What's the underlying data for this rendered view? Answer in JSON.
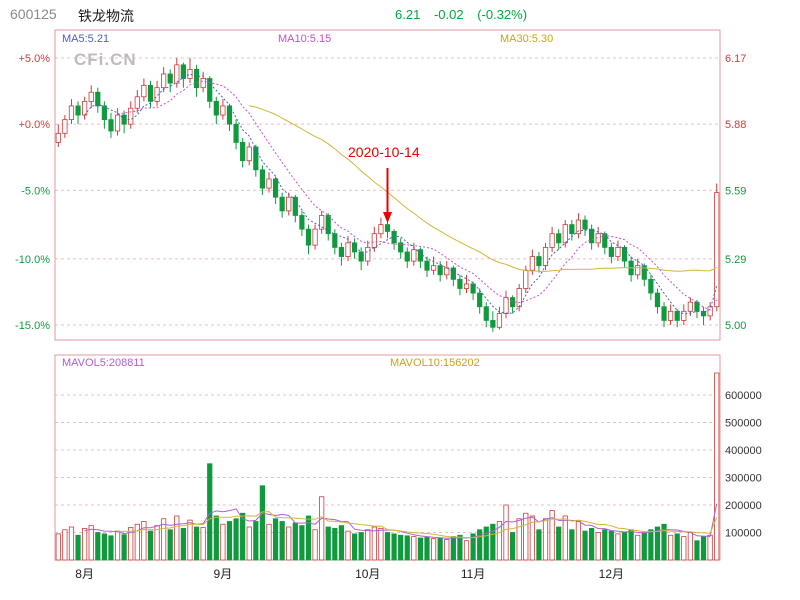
{
  "header": {
    "code": "600125",
    "name": "铁龙物流",
    "price": "6.21",
    "change": "-0.02",
    "change_pct": "(-0.32%)",
    "quote_color": "#00a83c"
  },
  "watermark": "CFi.CN",
  "annotation": {
    "text": "2020-10-14",
    "index": 50,
    "color": "#e60000"
  },
  "main_chart": {
    "ma_labels": [
      {
        "text": "MA5:5.21",
        "color": "#4d5fc0"
      },
      {
        "text": "MA10:5.15",
        "color": "#c94fc9"
      },
      {
        "text": "MA30:5.30",
        "color": "#c8a21d"
      }
    ],
    "left_axis": [
      {
        "text": "+5.0%",
        "color": "#d43c3c"
      },
      {
        "text": "+0.0%",
        "color": "#d43c3c"
      },
      {
        "text": "-5.0%",
        "color": "#109a3e"
      },
      {
        "text": "-10.0%",
        "color": "#109a3e"
      },
      {
        "text": "-15.0%",
        "color": "#109a3e"
      }
    ],
    "right_axis": [
      {
        "text": "6.17",
        "color": "#d43c3c",
        "price": 6.17
      },
      {
        "text": "5.88",
        "color": "#d43c3c",
        "price": 5.88
      },
      {
        "text": "5.59",
        "color": "#109a3e",
        "price": 5.59
      },
      {
        "text": "5.29",
        "color": "#109a3e",
        "price": 5.29
      },
      {
        "text": "5.00",
        "color": "#109a3e",
        "price": 5.0
      }
    ]
  },
  "volume_chart": {
    "mavol_labels": [
      {
        "text": "MAVOL5:208811",
        "color": "#b05fd0"
      },
      {
        "text": "MAVOL10:156202",
        "color": "#c8a21d"
      }
    ]
  },
  "x_axis": {
    "months": [
      {
        "label": "8月",
        "index": 4
      },
      {
        "label": "9月",
        "index": 25
      },
      {
        "label": "10月",
        "index": 47
      },
      {
        "label": "11月",
        "index": 63
      },
      {
        "label": "12月",
        "index": 84
      }
    ]
  },
  "chart_data": {
    "type": "candlestick",
    "title": "600125 铁龙物流 daily K-line with volume",
    "ylim": [
      5.0,
      6.17
    ],
    "percent_ylim": [
      "-15.0%",
      "+5.0%"
    ],
    "base_price": 5.88,
    "volume_ticks": [
      600000,
      500000,
      400000,
      300000,
      200000,
      100000
    ],
    "columns": [
      "open",
      "high",
      "low",
      "close",
      "volume"
    ],
    "colors": {
      "up": "#cf3b3b",
      "down": "#109a3e",
      "grid": "#f2bcbc",
      "border": "#e09a9a",
      "ma5": "#4d5fc0",
      "ma10": "#c94fc9",
      "ma30": "#d2b53a",
      "mavol5": "#b05fd0",
      "mavol10": "#d2b53a",
      "volume_tick_color": "#333333",
      "month_label_color": "#222222"
    },
    "candles": [
      [
        5.8,
        5.88,
        5.78,
        5.84,
        95000
      ],
      [
        5.84,
        5.92,
        5.82,
        5.9,
        110000
      ],
      [
        5.9,
        5.99,
        5.88,
        5.96,
        120000
      ],
      [
        5.96,
        5.98,
        5.88,
        5.92,
        90000
      ],
      [
        5.92,
        6.0,
        5.9,
        5.98,
        115000
      ],
      [
        5.98,
        6.05,
        5.95,
        6.02,
        125000
      ],
      [
        6.02,
        6.04,
        5.93,
        5.96,
        100000
      ],
      [
        5.96,
        5.98,
        5.86,
        5.9,
        95000
      ],
      [
        5.9,
        5.93,
        5.82,
        5.85,
        88000
      ],
      [
        5.85,
        5.95,
        5.83,
        5.92,
        105000
      ],
      [
        5.92,
        5.94,
        5.84,
        5.88,
        92000
      ],
      [
        5.88,
        5.98,
        5.86,
        5.95,
        118000
      ],
      [
        5.95,
        6.03,
        5.93,
        6.0,
        130000
      ],
      [
        6.0,
        6.08,
        5.98,
        6.05,
        140000
      ],
      [
        6.05,
        6.07,
        5.95,
        5.98,
        105000
      ],
      [
        5.98,
        6.07,
        5.96,
        6.04,
        125000
      ],
      [
        6.04,
        6.13,
        6.02,
        6.1,
        150000
      ],
      [
        6.1,
        6.12,
        6.02,
        6.06,
        110000
      ],
      [
        6.06,
        6.17,
        6.04,
        6.14,
        160000
      ],
      [
        6.14,
        6.15,
        6.04,
        6.08,
        115000
      ],
      [
        6.08,
        6.17,
        6.06,
        6.12,
        145000
      ],
      [
        6.12,
        6.14,
        6.0,
        6.04,
        120000
      ],
      [
        6.04,
        6.11,
        6.02,
        6.08,
        118000
      ],
      [
        6.08,
        6.09,
        5.95,
        5.98,
        350000
      ],
      [
        5.98,
        6.0,
        5.88,
        5.92,
        160000
      ],
      [
        5.92,
        5.99,
        5.9,
        5.96,
        130000
      ],
      [
        5.96,
        5.97,
        5.85,
        5.88,
        140000
      ],
      [
        5.88,
        5.9,
        5.77,
        5.8,
        150000
      ],
      [
        5.8,
        5.82,
        5.69,
        5.72,
        170000
      ],
      [
        5.72,
        5.8,
        5.7,
        5.78,
        120000
      ],
      [
        5.78,
        5.79,
        5.65,
        5.68,
        140000
      ],
      [
        5.68,
        5.7,
        5.57,
        5.6,
        270000
      ],
      [
        5.6,
        5.67,
        5.58,
        5.64,
        130000
      ],
      [
        5.64,
        5.65,
        5.53,
        5.56,
        150000
      ],
      [
        5.56,
        5.58,
        5.47,
        5.5,
        140000
      ],
      [
        5.5,
        5.58,
        5.48,
        5.56,
        120000
      ],
      [
        5.56,
        5.57,
        5.45,
        5.48,
        135000
      ],
      [
        5.48,
        5.5,
        5.39,
        5.42,
        125000
      ],
      [
        5.42,
        5.44,
        5.31,
        5.35,
        160000
      ],
      [
        5.35,
        5.44,
        5.33,
        5.42,
        110000
      ],
      [
        5.42,
        5.5,
        5.4,
        5.48,
        230000
      ],
      [
        5.48,
        5.49,
        5.37,
        5.4,
        120000
      ],
      [
        5.4,
        5.42,
        5.31,
        5.34,
        115000
      ],
      [
        5.34,
        5.36,
        5.26,
        5.3,
        125000
      ],
      [
        5.3,
        5.39,
        5.28,
        5.36,
        105000
      ],
      [
        5.36,
        5.38,
        5.29,
        5.32,
        95000
      ],
      [
        5.32,
        5.34,
        5.24,
        5.28,
        100000
      ],
      [
        5.28,
        5.37,
        5.26,
        5.34,
        110000
      ],
      [
        5.34,
        5.43,
        5.32,
        5.4,
        120000
      ],
      [
        5.4,
        5.47,
        5.38,
        5.44,
        115000
      ],
      [
        5.44,
        5.46,
        5.38,
        5.41,
        100000
      ],
      [
        5.41,
        5.42,
        5.33,
        5.36,
        95000
      ],
      [
        5.36,
        5.38,
        5.29,
        5.32,
        90000
      ],
      [
        5.32,
        5.34,
        5.25,
        5.28,
        88000
      ],
      [
        5.28,
        5.36,
        5.26,
        5.33,
        85000
      ],
      [
        5.33,
        5.34,
        5.25,
        5.28,
        80000
      ],
      [
        5.28,
        5.3,
        5.21,
        5.24,
        82000
      ],
      [
        5.24,
        5.3,
        5.22,
        5.26,
        78000
      ],
      [
        5.26,
        5.28,
        5.19,
        5.22,
        80000
      ],
      [
        5.22,
        5.28,
        5.2,
        5.25,
        75000
      ],
      [
        5.25,
        5.26,
        5.17,
        5.2,
        85000
      ],
      [
        5.2,
        5.22,
        5.13,
        5.16,
        90000
      ],
      [
        5.16,
        5.22,
        5.14,
        5.18,
        70000
      ],
      [
        5.18,
        5.19,
        5.11,
        5.14,
        95000
      ],
      [
        5.14,
        5.16,
        5.05,
        5.08,
        110000
      ],
      [
        5.08,
        5.1,
        4.99,
        5.02,
        120000
      ],
      [
        5.02,
        5.06,
        4.97,
        4.99,
        130000
      ],
      [
        4.99,
        5.08,
        4.98,
        5.05,
        140000
      ],
      [
        5.05,
        5.15,
        5.03,
        5.12,
        200000
      ],
      [
        5.12,
        5.13,
        5.05,
        5.08,
        100000
      ],
      [
        5.08,
        5.18,
        5.06,
        5.16,
        150000
      ],
      [
        5.16,
        5.26,
        5.14,
        5.24,
        170000
      ],
      [
        5.24,
        5.33,
        5.22,
        5.3,
        160000
      ],
      [
        5.3,
        5.32,
        5.23,
        5.26,
        110000
      ],
      [
        5.26,
        5.36,
        5.24,
        5.34,
        150000
      ],
      [
        5.34,
        5.43,
        5.32,
        5.4,
        180000
      ],
      [
        5.4,
        5.42,
        5.33,
        5.36,
        120000
      ],
      [
        5.36,
        5.46,
        5.34,
        5.44,
        160000
      ],
      [
        5.44,
        5.46,
        5.37,
        5.4,
        110000
      ],
      [
        5.4,
        5.49,
        5.38,
        5.46,
        140000
      ],
      [
        5.46,
        5.48,
        5.39,
        5.42,
        105000
      ],
      [
        5.42,
        5.44,
        5.33,
        5.36,
        115000
      ],
      [
        5.36,
        5.43,
        5.34,
        5.4,
        100000
      ],
      [
        5.4,
        5.41,
        5.31,
        5.34,
        110000
      ],
      [
        5.34,
        5.36,
        5.27,
        5.3,
        105000
      ],
      [
        5.3,
        5.37,
        5.28,
        5.34,
        95000
      ],
      [
        5.34,
        5.35,
        5.25,
        5.28,
        100000
      ],
      [
        5.28,
        5.3,
        5.19,
        5.22,
        110000
      ],
      [
        5.22,
        5.29,
        5.2,
        5.26,
        90000
      ],
      [
        5.26,
        5.27,
        5.17,
        5.2,
        100000
      ],
      [
        5.2,
        5.22,
        5.11,
        5.14,
        110000
      ],
      [
        5.14,
        5.16,
        5.05,
        5.08,
        120000
      ],
      [
        5.08,
        5.1,
        4.99,
        5.02,
        130000
      ],
      [
        5.02,
        5.09,
        5.0,
        5.06,
        90000
      ],
      [
        5.06,
        5.07,
        4.99,
        5.02,
        95000
      ],
      [
        5.02,
        5.09,
        5.0,
        5.06,
        85000
      ],
      [
        5.06,
        5.12,
        5.04,
        5.1,
        100000
      ],
      [
        5.1,
        5.11,
        5.03,
        5.06,
        70000
      ],
      [
        5.06,
        5.08,
        5.0,
        5.04,
        85000
      ],
      [
        5.04,
        5.1,
        5.02,
        5.08,
        90000
      ],
      [
        5.08,
        5.62,
        5.06,
        5.58,
        680000
      ]
    ]
  }
}
